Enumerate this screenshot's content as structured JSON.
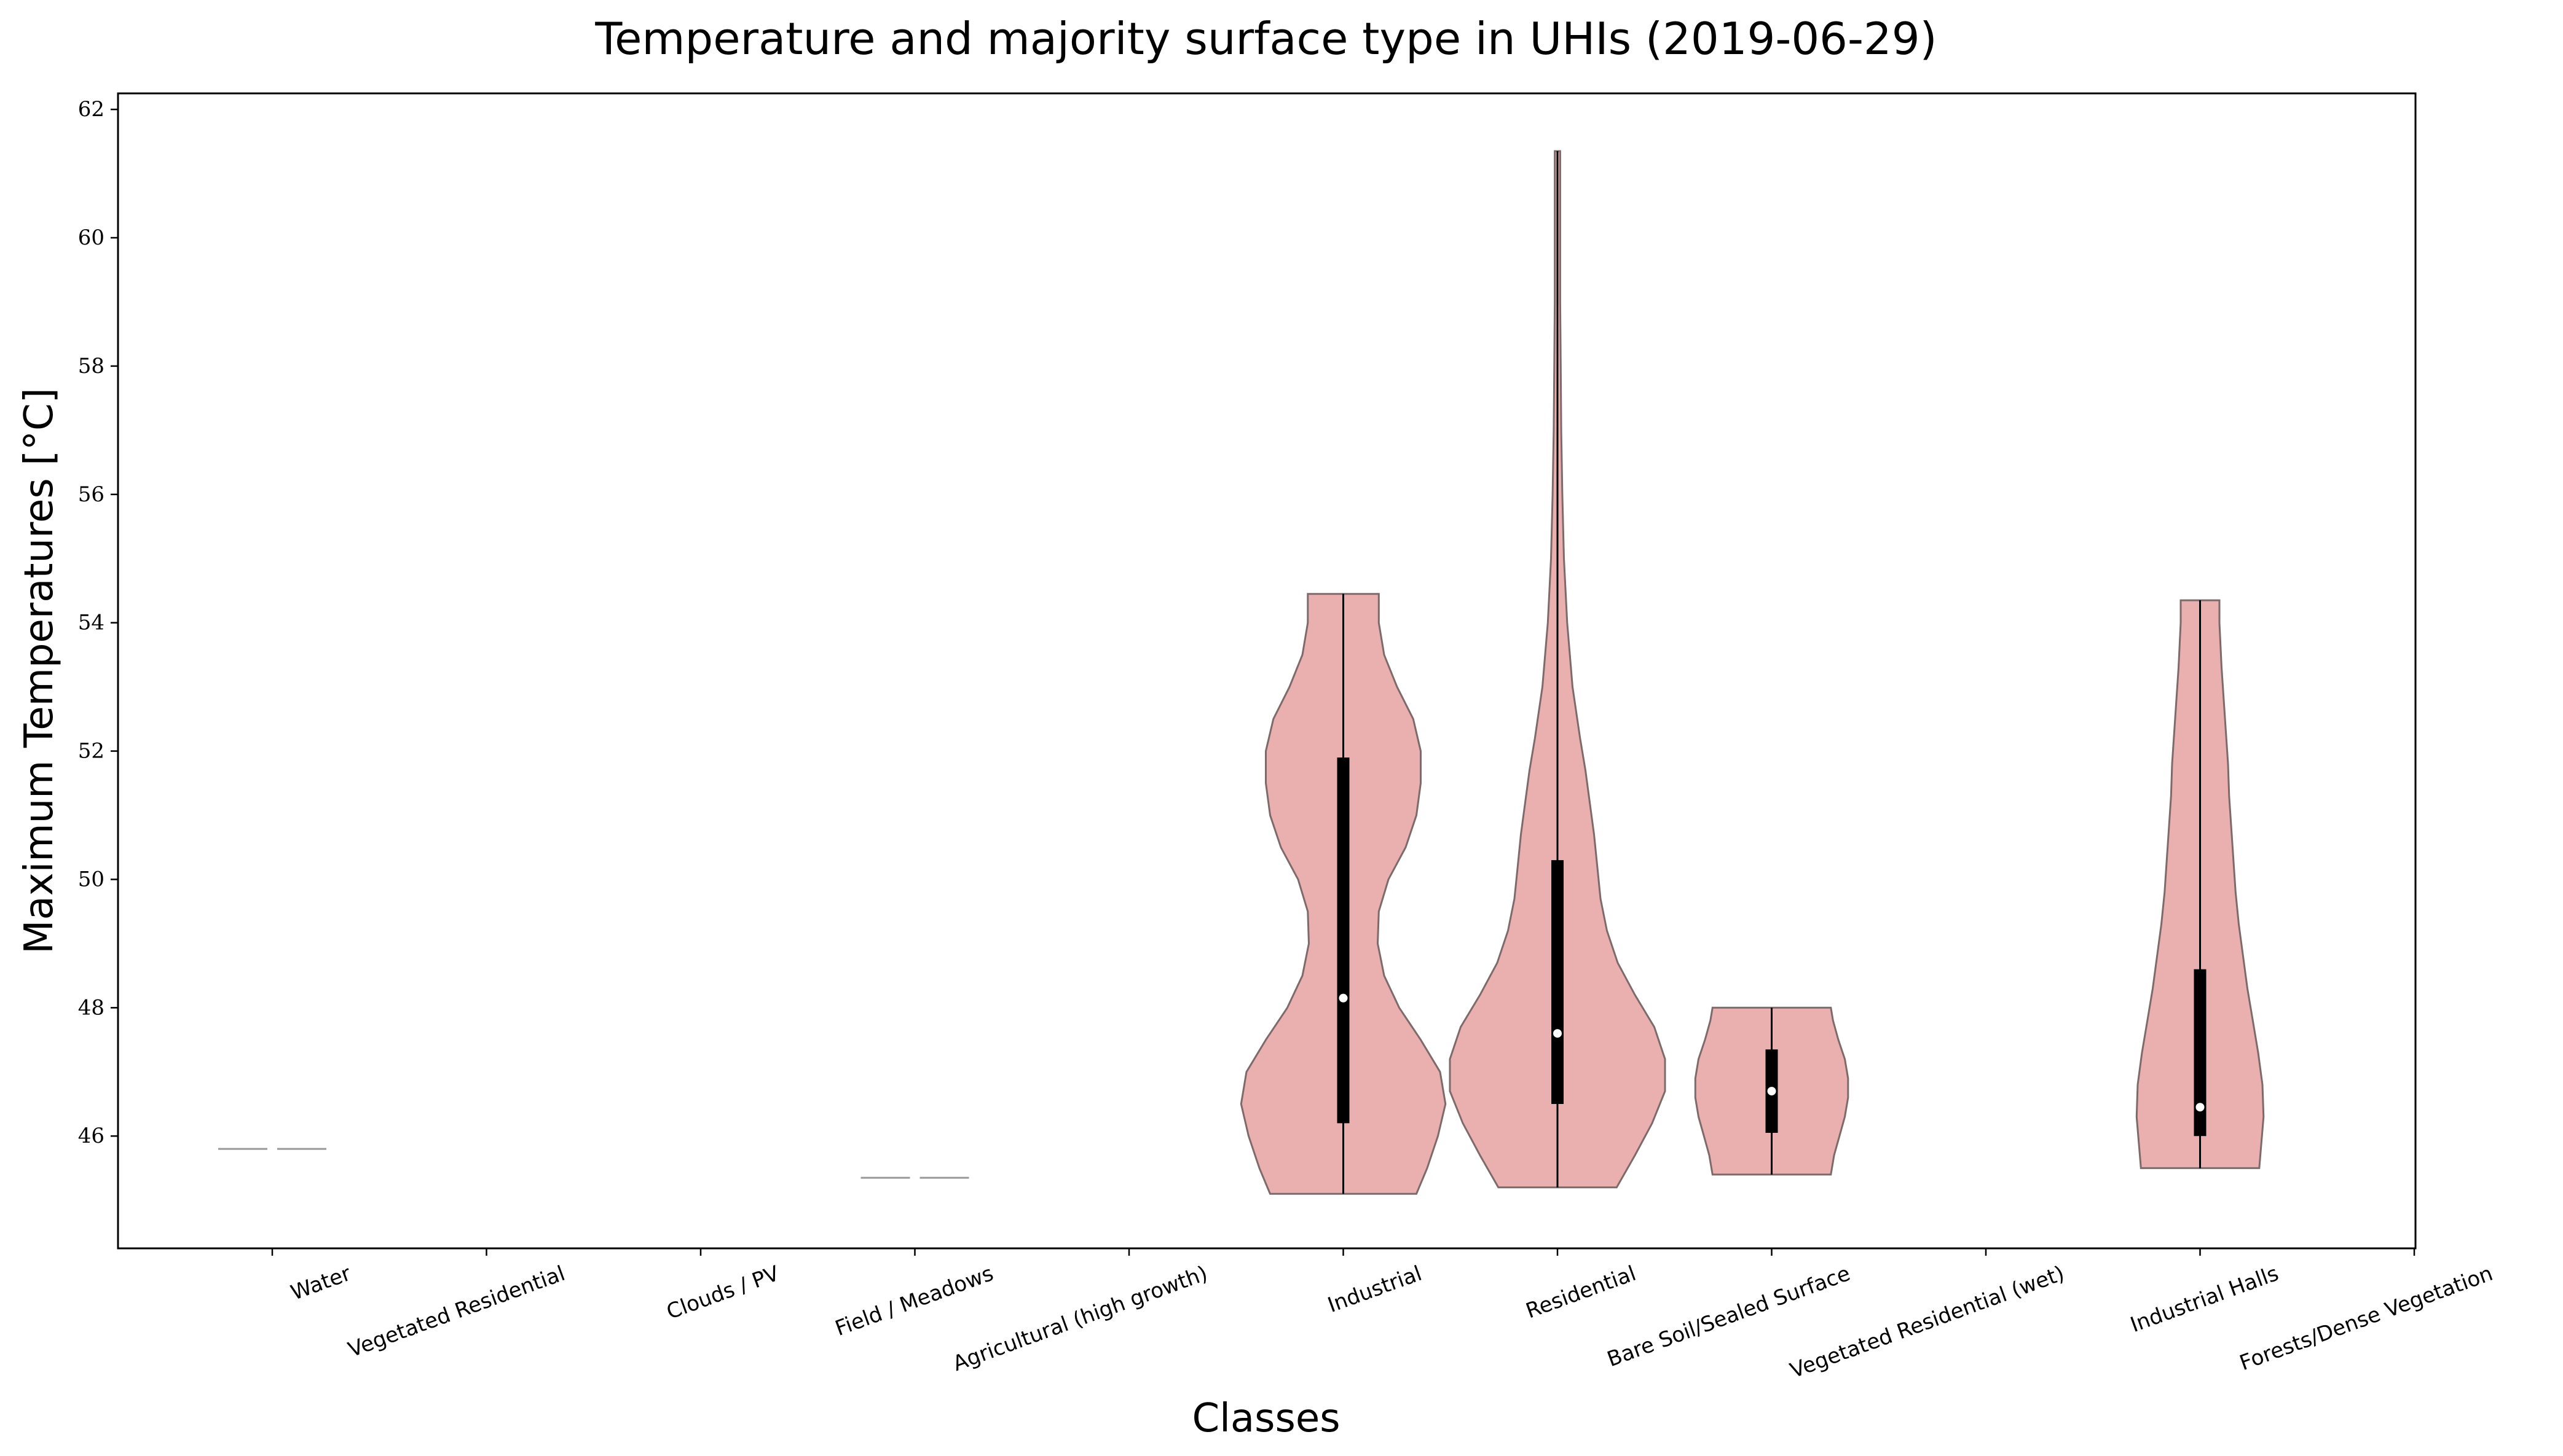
{
  "colors": {
    "violin_fill": "#eab0af",
    "violin_edge": "#7d6a6a",
    "box": "#000000",
    "median": "#ffffff",
    "degenerate_line": "#999999"
  },
  "chart_data": {
    "type": "violin",
    "title": "Temperature and majority surface type in UHIs (2019-06-29)",
    "xlabel": "Classes",
    "ylabel": "Maximum Temperatures [°C]",
    "ylim": [
      44.25,
      62.25
    ],
    "yticks": [
      "46",
      "48",
      "50",
      "52",
      "54",
      "56",
      "58",
      "60",
      "62"
    ],
    "grid": false,
    "categories": [
      "Water",
      "Vegetated Residential",
      "Clouds / PV",
      "Field / Meadows",
      "Agricultural (high growth)",
      "Industrial",
      "Residential",
      "Bare Soil/Sealed Surface",
      "Vegetated Residential (wet)",
      "Industrial Halls",
      "Forests/Dense Vegetation"
    ],
    "series": [
      {
        "category": "Water",
        "single_value": 45.8
      },
      {
        "category": "Field / Meadows",
        "single_value": 45.35
      },
      {
        "category": "Industrial",
        "min": 45.1,
        "q1": 46.2,
        "median": 48.15,
        "q3": 51.9,
        "max": 54.45,
        "density": [
          [
            45.1,
            0.68
          ],
          [
            45.5,
            0.78
          ],
          [
            46.0,
            0.88
          ],
          [
            46.5,
            0.95
          ],
          [
            47.0,
            0.9
          ],
          [
            47.5,
            0.72
          ],
          [
            48.0,
            0.52
          ],
          [
            48.5,
            0.38
          ],
          [
            49.0,
            0.32
          ],
          [
            49.5,
            0.33
          ],
          [
            50.0,
            0.42
          ],
          [
            50.5,
            0.58
          ],
          [
            51.0,
            0.68
          ],
          [
            51.5,
            0.72
          ],
          [
            52.0,
            0.72
          ],
          [
            52.5,
            0.65
          ],
          [
            53.0,
            0.5
          ],
          [
            53.5,
            0.38
          ],
          [
            54.0,
            0.33
          ],
          [
            54.45,
            0.33
          ]
        ]
      },
      {
        "category": "Residential",
        "min": 45.2,
        "q1": 46.5,
        "median": 47.6,
        "q3": 50.3,
        "max": 61.35,
        "density": [
          [
            45.2,
            0.55
          ],
          [
            45.7,
            0.72
          ],
          [
            46.2,
            0.88
          ],
          [
            46.7,
            1.0
          ],
          [
            47.2,
            1.0
          ],
          [
            47.7,
            0.9
          ],
          [
            48.2,
            0.72
          ],
          [
            48.7,
            0.56
          ],
          [
            49.2,
            0.46
          ],
          [
            49.7,
            0.4
          ],
          [
            50.2,
            0.37
          ],
          [
            50.7,
            0.34
          ],
          [
            51.2,
            0.3
          ],
          [
            51.7,
            0.26
          ],
          [
            52.2,
            0.21
          ],
          [
            53.0,
            0.14
          ],
          [
            54.0,
            0.09
          ],
          [
            55.0,
            0.06
          ],
          [
            56.0,
            0.045
          ],
          [
            57.0,
            0.035
          ],
          [
            58.0,
            0.03
          ],
          [
            59.0,
            0.025
          ],
          [
            60.0,
            0.025
          ],
          [
            61.35,
            0.025
          ]
        ]
      },
      {
        "category": "Bare Soil/Sealed Surface",
        "min": 45.4,
        "q1": 46.05,
        "median": 46.7,
        "q3": 47.35,
        "max": 48.0,
        "density": [
          [
            45.4,
            0.55
          ],
          [
            45.7,
            0.58
          ],
          [
            46.0,
            0.63
          ],
          [
            46.3,
            0.68
          ],
          [
            46.6,
            0.71
          ],
          [
            46.9,
            0.71
          ],
          [
            47.2,
            0.68
          ],
          [
            47.5,
            0.62
          ],
          [
            47.8,
            0.57
          ],
          [
            48.0,
            0.55
          ]
        ]
      },
      {
        "category": "Industrial Halls",
        "min": 45.5,
        "q1": 46.0,
        "median": 46.45,
        "q3": 48.6,
        "max": 54.35,
        "density": [
          [
            45.5,
            0.55
          ],
          [
            45.9,
            0.57
          ],
          [
            46.3,
            0.59
          ],
          [
            46.8,
            0.58
          ],
          [
            47.3,
            0.54
          ],
          [
            47.8,
            0.49
          ],
          [
            48.3,
            0.44
          ],
          [
            48.8,
            0.4
          ],
          [
            49.3,
            0.36
          ],
          [
            49.8,
            0.33
          ],
          [
            50.3,
            0.31
          ],
          [
            50.8,
            0.29
          ],
          [
            51.3,
            0.27
          ],
          [
            51.8,
            0.26
          ],
          [
            52.3,
            0.24
          ],
          [
            52.8,
            0.22
          ],
          [
            53.3,
            0.2
          ],
          [
            54.0,
            0.18
          ],
          [
            54.35,
            0.18
          ]
        ]
      }
    ]
  }
}
